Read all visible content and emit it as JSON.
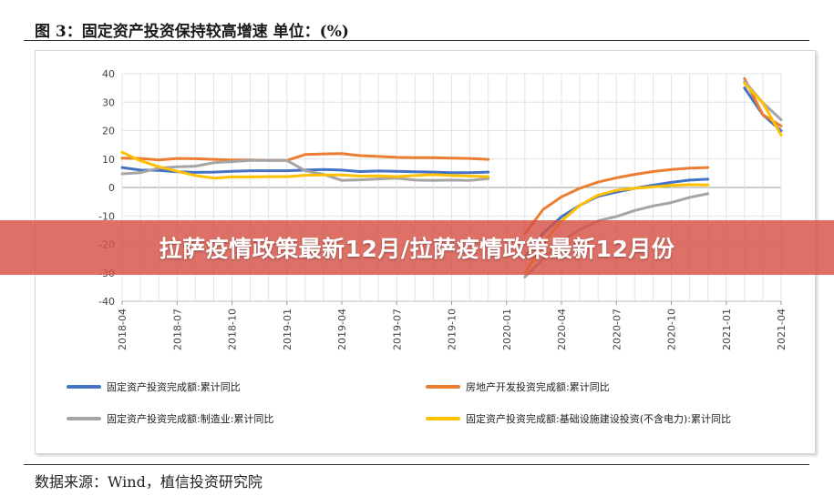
{
  "figure_title": "图 3：固定资产投资保持较高增速 单位：(%)",
  "banner": "拉萨疫情政策最新12月/拉萨疫情政策最新12月份",
  "source": "数据来源：Wind，植信投资研究院",
  "chart_data": {
    "type": "line",
    "title": "",
    "xlabel": "",
    "ylabel": "",
    "ylim": [
      -40,
      40
    ],
    "yticks": [
      -40,
      -30,
      -20,
      -10,
      0,
      10,
      20,
      30,
      40
    ],
    "grid": "on",
    "legend_position": "bottom",
    "x": [
      "2018-04",
      "2018-05",
      "2018-06",
      "2018-07",
      "2018-08",
      "2018-09",
      "2018-10",
      "2018-11",
      "2018-12",
      "2019-01",
      "2019-02",
      "2019-03",
      "2019-04",
      "2019-05",
      "2019-06",
      "2019-07",
      "2019-08",
      "2019-09",
      "2019-10",
      "2019-11",
      "2019-12",
      "2020-01",
      "2020-02",
      "2020-03",
      "2020-04",
      "2020-05",
      "2020-06",
      "2020-07",
      "2020-08",
      "2020-09",
      "2020-10",
      "2020-11",
      "2020-12",
      "2021-01",
      "2021-02",
      "2021-03",
      "2021-04"
    ],
    "xtick_labels": [
      "2018-04",
      "2018-07",
      "2018-10",
      "2019-01",
      "2019-04",
      "2019-07",
      "2019-10",
      "2020-01",
      "2020-04",
      "2020-07",
      "2020-10",
      "2021-01",
      "2021-04"
    ],
    "series": [
      {
        "name": "固定资产投资完成额:累计同比",
        "color": "#4472C4",
        "values": [
          7.0,
          6.1,
          6.0,
          5.5,
          5.3,
          5.4,
          5.7,
          5.9,
          5.9,
          5.9,
          6.1,
          6.3,
          6.1,
          5.6,
          5.8,
          5.7,
          5.5,
          5.4,
          5.2,
          5.2,
          5.4,
          null,
          -24.5,
          -16.1,
          -10.3,
          -6.3,
          -3.1,
          -1.6,
          -0.3,
          0.8,
          1.8,
          2.6,
          2.9,
          null,
          35.0,
          25.6,
          19.9
        ]
      },
      {
        "name": "房地产开发投资完成额:累计同比",
        "color": "#ED7D31",
        "values": [
          10.3,
          10.2,
          9.7,
          10.2,
          10.1,
          9.9,
          9.7,
          9.7,
          9.5,
          9.5,
          11.6,
          11.8,
          11.9,
          11.2,
          10.9,
          10.6,
          10.5,
          10.5,
          10.3,
          10.2,
          9.9,
          null,
          -16.3,
          -7.7,
          -3.3,
          -0.3,
          1.9,
          3.4,
          4.6,
          5.6,
          6.3,
          6.8,
          7.0,
          null,
          38.3,
          25.6,
          21.6
        ]
      },
      {
        "name": "固定资产投资完成额:制造业:累计同比",
        "color": "#A5A5A5",
        "values": [
          4.8,
          5.2,
          6.8,
          7.3,
          7.5,
          8.7,
          9.1,
          9.5,
          9.5,
          9.5,
          5.9,
          4.6,
          2.5,
          2.7,
          3.0,
          3.3,
          2.6,
          2.5,
          2.6,
          2.5,
          3.1,
          null,
          -31.5,
          -25.2,
          -18.8,
          -14.8,
          -11.7,
          -10.2,
          -8.1,
          -6.5,
          -5.3,
          -3.5,
          -2.2,
          null,
          37.3,
          29.8,
          23.8
        ]
      },
      {
        "name": "固定资产投资完成额:基础设施建设投资(不含电力):累计同比",
        "color": "#FFC000",
        "values": [
          12.4,
          9.4,
          7.3,
          5.7,
          4.2,
          3.3,
          3.7,
          3.7,
          3.8,
          3.8,
          4.3,
          4.4,
          4.4,
          4.0,
          4.1,
          3.8,
          4.2,
          4.5,
          4.2,
          4.0,
          3.8,
          null,
          -30.3,
          -19.7,
          -11.8,
          -6.3,
          -2.7,
          -1.0,
          -0.3,
          0.2,
          0.7,
          1.0,
          0.9,
          null,
          36.6,
          29.7,
          18.4
        ]
      }
    ]
  }
}
